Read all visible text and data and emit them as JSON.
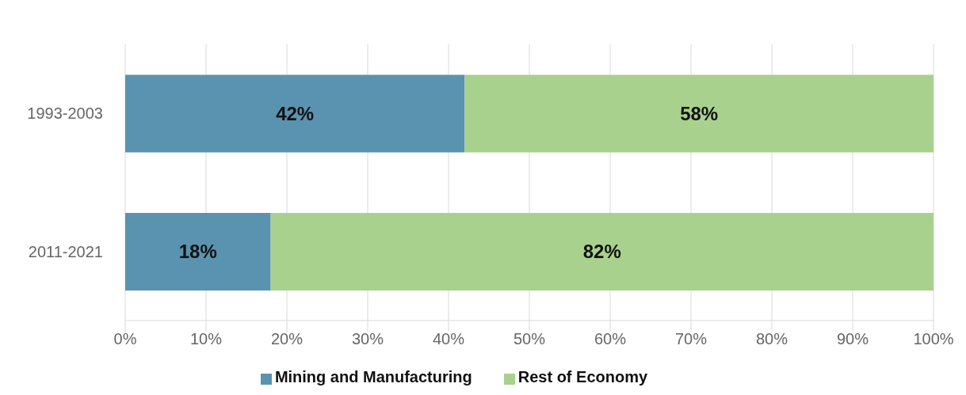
{
  "chart_data": {
    "type": "bar",
    "orientation": "horizontal",
    "stacked": true,
    "categories": [
      "1993-2003",
      "2011-2021"
    ],
    "series": [
      {
        "name": "Mining and Manufacturing",
        "color": "#5a93af",
        "values": [
          42,
          18
        ],
        "value_labels": [
          "42%",
          "18%"
        ]
      },
      {
        "name": "Rest of Economy",
        "color": "#a8d18d",
        "values": [
          58,
          82
        ],
        "value_labels": [
          "58%",
          "82%"
        ]
      }
    ],
    "xlim": [
      0,
      100
    ],
    "xticks": [
      {
        "value": 0,
        "label": "0%"
      },
      {
        "value": 10,
        "label": "10%"
      },
      {
        "value": 20,
        "label": "20%"
      },
      {
        "value": 30,
        "label": "30%"
      },
      {
        "value": 40,
        "label": "40%"
      },
      {
        "value": 50,
        "label": "50%"
      },
      {
        "value": 60,
        "label": "60%"
      },
      {
        "value": 70,
        "label": "70%"
      },
      {
        "value": 80,
        "label": "80%"
      },
      {
        "value": 90,
        "label": "90%"
      },
      {
        "value": 100,
        "label": "100%"
      }
    ],
    "grid": "x",
    "legend": "bottom"
  }
}
